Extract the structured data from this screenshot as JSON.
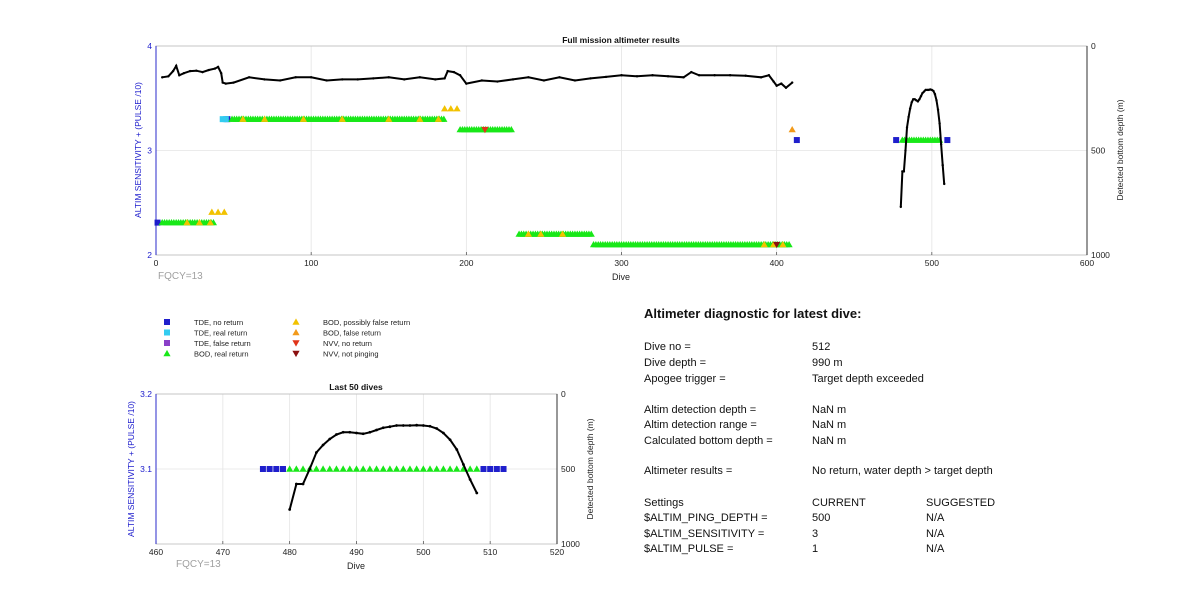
{
  "chart_data": [
    {
      "type": "scatter",
      "title": "Full mission altimeter results",
      "xlabel": "Dive",
      "ylabel": "ALTIM SENSITIVITY + (PULSE /10)",
      "y2label": "Detected bottom depth (m)",
      "xlim": [
        0,
        600
      ],
      "ylim": [
        2,
        4
      ],
      "y2lim": [
        1000,
        0
      ],
      "xticks": [
        "0",
        "100",
        "200",
        "300",
        "400",
        "500",
        "600"
      ],
      "yticks": [
        "2",
        "3",
        "4"
      ],
      "y2ticks": [
        "1000",
        "500",
        "0"
      ],
      "annotation": "FQCY=13",
      "grid": true,
      "markers": [
        {
          "series": "TDE, no return",
          "x": [
            1
          ],
          "y": 2.31
        },
        {
          "series": "TDE, no return",
          "x": [
            46
          ],
          "y": 3.3
        },
        {
          "series": "TDE, no return",
          "x": [
            413
          ],
          "y": 3.1
        },
        {
          "series": "TDE, no return",
          "x": [
            477,
            510
          ],
          "y": 3.1
        },
        {
          "series": "TDE, real return",
          "x": [
            43,
            45
          ],
          "y": 3.3
        },
        {
          "series": "BOD, real return",
          "x_range": [
            4,
            37
          ],
          "y": 2.31
        },
        {
          "series": "BOD, real return",
          "x_range": [
            49,
            186
          ],
          "y": 3.3
        },
        {
          "series": "BOD, real return",
          "x_range": [
            196,
            230
          ],
          "y": 3.2
        },
        {
          "series": "BOD, real return",
          "x_range": [
            234,
            281
          ],
          "y": 2.2
        },
        {
          "series": "BOD, real return",
          "x_range": [
            282,
            409
          ],
          "y": 2.1
        },
        {
          "series": "BOD, real return",
          "x_range": [
            481,
            506
          ],
          "y": 3.1
        },
        {
          "series": "BOD, possibly false return",
          "x": [
            36,
            40,
            44
          ],
          "y": 2.41
        },
        {
          "series": "BOD, possibly false return",
          "x": [
            186,
            190,
            194
          ],
          "y": 3.4
        },
        {
          "series": "BOD, possibly false return",
          "x": [
            20,
            28,
            35,
            56,
            70,
            95,
            120,
            150,
            170,
            182
          ],
          "y_by_group": [
            2.31,
            2.31,
            2.31,
            3.3,
            3.3,
            3.3,
            3.3,
            3.3,
            3.3,
            3.3
          ]
        },
        {
          "series": "BOD, possibly false return",
          "x": [
            240,
            248,
            262,
            392,
            398,
            404
          ],
          "y_by_group": [
            2.2,
            2.2,
            2.2,
            2.1,
            2.1,
            2.1
          ]
        },
        {
          "series": "BOD, false return",
          "x": [
            410
          ],
          "y": 3.2
        },
        {
          "series": "NVV, no return",
          "x": [
            212
          ],
          "y": 3.2
        },
        {
          "series": "NVV, not pinging",
          "x": [
            400
          ],
          "y": 2.1
        }
      ],
      "bottom_depth_series": [
        {
          "x": [
            4,
            8,
            11,
            13,
            15,
            18,
            22,
            26,
            30,
            34,
            38,
            40,
            42,
            43,
            45,
            50,
            60,
            70,
            80,
            90,
            100,
            110,
            120,
            130,
            140,
            150,
            160,
            170,
            180,
            186,
            188,
            192,
            196,
            200,
            210,
            220,
            230,
            240,
            250,
            260,
            270,
            280,
            290,
            300,
            310,
            320,
            330,
            340,
            345,
            350,
            360,
            370,
            380,
            390,
            395,
            398,
            400,
            403,
            406,
            410
          ],
          "depth_m": [
            150,
            145,
            120,
            95,
            140,
            130,
            120,
            118,
            125,
            115,
            108,
            100,
            130,
            175,
            180,
            175,
            150,
            160,
            165,
            150,
            150,
            165,
            160,
            160,
            155,
            150,
            160,
            150,
            160,
            155,
            120,
            125,
            140,
            180,
            165,
            170,
            160,
            150,
            165,
            150,
            165,
            155,
            148,
            140,
            145,
            140,
            145,
            150,
            125,
            140,
            140,
            140,
            142,
            150,
            140,
            170,
            190,
            180,
            200,
            175
          ]
        },
        {
          "x": [
            480,
            481,
            482,
            483,
            484,
            485,
            486,
            487,
            488,
            489,
            490,
            491,
            492,
            493,
            494,
            495,
            496,
            497,
            498,
            499,
            500,
            501,
            502,
            503,
            504,
            505,
            506,
            507,
            508
          ],
          "depth_m": [
            770,
            600,
            600,
            500,
            390,
            340,
            300,
            270,
            255,
            255,
            260,
            265,
            255,
            240,
            225,
            218,
            210,
            210,
            210,
            208,
            210,
            215,
            230,
            260,
            305,
            370,
            470,
            570,
            660
          ]
        }
      ]
    },
    {
      "type": "scatter",
      "title": "Last 50 dives",
      "xlabel": "Dive",
      "ylabel": "ALTIM SENSITIVITY + (PULSE /10)",
      "y2label": "Detected bottom depth (m)",
      "xlim": [
        460,
        520
      ],
      "ylim": [
        3.0,
        3.2
      ],
      "y2lim": [
        1000,
        0
      ],
      "xticks": [
        "460",
        "470",
        "480",
        "490",
        "500",
        "510",
        "520"
      ],
      "yticks": [
        "3.1",
        "3.2"
      ],
      "y2ticks": [
        "1000",
        "500",
        "0"
      ],
      "annotation": "FQCY=13",
      "grid": true,
      "markers": [
        {
          "series": "TDE, no return",
          "x": [
            476,
            477,
            478,
            479,
            509,
            510,
            511,
            512
          ],
          "y": 3.1
        },
        {
          "series": "BOD, real return",
          "x": [
            480,
            481,
            482,
            483,
            484,
            485,
            486,
            487,
            488,
            489,
            490,
            491,
            492,
            493,
            494,
            495,
            496,
            497,
            498,
            499,
            500,
            501,
            502,
            503,
            504,
            505,
            506,
            507,
            508
          ],
          "y": 3.1
        }
      ],
      "bottom_depth_series": [
        {
          "x": [
            480,
            481,
            482,
            483,
            484,
            485,
            486,
            487,
            488,
            489,
            490,
            491,
            492,
            493,
            494,
            495,
            496,
            497,
            498,
            499,
            500,
            501,
            502,
            503,
            504,
            505,
            506,
            507,
            508
          ],
          "depth_m": [
            770,
            600,
            600,
            500,
            390,
            340,
            300,
            270,
            255,
            255,
            260,
            265,
            255,
            240,
            225,
            218,
            210,
            210,
            210,
            208,
            210,
            215,
            230,
            260,
            305,
            370,
            470,
            570,
            660
          ]
        }
      ]
    }
  ],
  "legend": [
    {
      "label": "TDE, no return",
      "marker": "square",
      "color": "#1f1fcc"
    },
    {
      "label": "TDE, real return",
      "marker": "square",
      "color": "#33ccf0"
    },
    {
      "label": "TDE, false return",
      "marker": "square",
      "color": "#8a3fc8"
    },
    {
      "label": "BOD, real return",
      "marker": "triangle-up",
      "color": "#18e818"
    },
    {
      "label": "BOD, possibly false return",
      "marker": "triangle-up",
      "color": "#f2c200"
    },
    {
      "label": "BOD, false return",
      "marker": "triangle-up",
      "color": "#f29a1a"
    },
    {
      "label": "NVV, no return",
      "marker": "triangle-down",
      "color": "#e0341a"
    },
    {
      "label": "NVV, not pinging",
      "marker": "triangle-down",
      "color": "#8b1010"
    }
  ],
  "colors": {
    "axis_left": "#1a1acc",
    "axis_right": "#222222",
    "depth_line": "#000000",
    "grid": "#e4e4e4",
    "annotation": "#a0a0a0"
  },
  "diagnostic": {
    "title": "Altimeter diagnostic for latest dive:",
    "rows": [
      {
        "label": "Dive no =",
        "value": "512"
      },
      {
        "label": "Dive depth =",
        "value": "990 m"
      },
      {
        "label": "Apogee trigger =",
        "value": "Target depth exceeded"
      },
      {
        "label": "Altim detection depth =",
        "value": "NaN m"
      },
      {
        "label": "Altim detection range =",
        "value": "NaN m"
      },
      {
        "label": "Calculated bottom depth =",
        "value": "NaN m"
      },
      {
        "label": "Altimeter results =",
        "value": "No return, water depth > target depth"
      }
    ],
    "settings": {
      "header": [
        "Settings",
        "CURRENT",
        "SUGGESTED"
      ],
      "rows": [
        {
          "label": "$ALTIM_PING_DEPTH =",
          "current": "500",
          "suggested": "N/A"
        },
        {
          "label": "$ALTIM_SENSITIVITY =",
          "current": "3",
          "suggested": "N/A"
        },
        {
          "label": "$ALTIM_PULSE =",
          "current": "1",
          "suggested": "N/A"
        }
      ]
    }
  }
}
